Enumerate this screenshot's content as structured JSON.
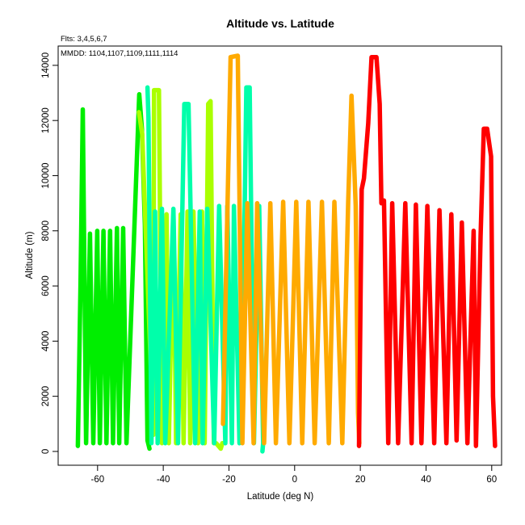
{
  "chart_data": {
    "type": "line",
    "title": "Altitude vs. Latitude",
    "subtitle": "Flts: 3,4,5,6,7",
    "annotation": "MMDD: 1104,1107,1109,1111,1114",
    "xlabel": "Latitude (deg N)",
    "ylabel": "Altitude (m)",
    "xlim": [
      -72,
      63
    ],
    "ylim": [
      -500,
      14700
    ],
    "xticks": [
      -60,
      -40,
      -20,
      0,
      20,
      40,
      60
    ],
    "yticks": [
      0,
      2000,
      4000,
      6000,
      8000,
      10000,
      12000,
      14000
    ],
    "grid": false,
    "series": [
      {
        "color": "#00ee00",
        "x": [
          -66,
          -65.2,
          -64.5,
          -63.5,
          -62.3,
          -61.3,
          -60.1,
          -59.3,
          -58.2,
          -57.3,
          -56.2,
          -55.3,
          -54.1,
          -53.4,
          -52.2,
          -51.2,
          -47.3,
          -46.5,
          -45.6,
          -44.8,
          -44.2
        ],
        "y": [
          200,
          6100,
          12400,
          300,
          7900,
          300,
          8000,
          300,
          8000,
          300,
          8000,
          300,
          8100,
          300,
          8100,
          300,
          12950,
          11700,
          8200,
          400,
          100
        ]
      },
      {
        "color": "#aaff00",
        "x": [
          -47.4,
          -46.4,
          -45.4,
          -43,
          -42.8,
          -41.3,
          -40.4,
          -39,
          -38.3,
          -36.9,
          -36.1,
          -34.7,
          -33.8,
          -32.6,
          -31.8,
          -30.8,
          -29.4,
          -28.2,
          -27.4,
          -26.3,
          -25.6,
          -24.6,
          -23.9,
          -22.5,
          -22
        ],
        "y": [
          12300,
          11500,
          8200,
          600,
          13100,
          13100,
          300,
          8600,
          300,
          8600,
          300,
          8600,
          300,
          8700,
          300,
          8700,
          300,
          8700,
          300,
          12600,
          12700,
          300,
          300,
          100,
          300
        ]
      },
      {
        "color": "#00ffaa",
        "x": [
          -44.8,
          -44.5,
          -43.6,
          -42.5,
          -41.7,
          -40.4,
          -39.4,
          -36.9,
          -35.5,
          -33.6,
          -32.3,
          -30.3,
          -28.9,
          -28,
          -26.6,
          -24.5,
          -23,
          -21.1,
          -20.5,
          -19.1,
          -18.5,
          -16.8,
          -15.2,
          -14.7,
          -13.7,
          -12.4,
          -10.8,
          -9.6,
          -9.8
        ],
        "y": [
          13200,
          12100,
          300,
          8700,
          300,
          8800,
          300,
          8800,
          300,
          12600,
          12600,
          300,
          8700,
          300,
          8800,
          300,
          8900,
          300,
          8900,
          300,
          8900,
          300,
          8900,
          13200,
          13200,
          300,
          8900,
          300,
          0
        ]
      },
      {
        "color": "#ffaa00",
        "x": [
          -21.8,
          -19.5,
          -17.3,
          -15.9,
          -14.4,
          -12.5,
          -11.4,
          -9.3,
          -7.4,
          -5.7,
          -3.5,
          -1.6,
          0.5,
          2.3,
          4.2,
          6.1,
          8.3,
          10.4,
          12.1,
          14.5,
          16.3,
          17.3,
          18.6,
          19.3,
          19.7
        ],
        "y": [
          1000,
          14300,
          14350,
          300,
          9000,
          300,
          9000,
          300,
          9000,
          300,
          9050,
          300,
          9050,
          300,
          9050,
          300,
          9050,
          300,
          9050,
          300,
          9050,
          12900,
          8900,
          1400,
          300
        ]
      },
      {
        "color": "#ff0000",
        "x": [
          19.6,
          20.4,
          21.1,
          22.4,
          23.4,
          24.9,
          25.9,
          26.4,
          27.2,
          28.5,
          29.7,
          31.5,
          33.7,
          35.6,
          36.9,
          38.6,
          40.4,
          42.5,
          44.1,
          46.2,
          47.7,
          49.3,
          50.9,
          52.6,
          54.5,
          55.2,
          56.6,
          57.6,
          58.6,
          59.8,
          60.4,
          61
        ],
        "y": [
          200,
          9500,
          9900,
          11900,
          14300,
          14300,
          12600,
          9000,
          9100,
          300,
          9000,
          300,
          9000,
          300,
          8950,
          300,
          8900,
          300,
          8750,
          300,
          8600,
          400,
          8300,
          300,
          8000,
          200,
          7800,
          11700,
          11700,
          10700,
          2000,
          200
        ]
      }
    ]
  }
}
